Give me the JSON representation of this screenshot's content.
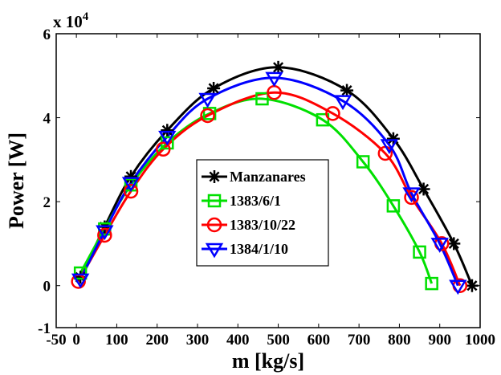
{
  "chart_data": {
    "type": "line",
    "xlabel": "m [kg/s]",
    "ylabel": "Power [W]",
    "y_multiplier": {
      "base": "x 10",
      "exponent": "4"
    },
    "xlim": [
      -50,
      1000
    ],
    "ylim": [
      -10000,
      60000
    ],
    "xticks": [
      -50,
      0,
      100,
      200,
      300,
      400,
      500,
      600,
      700,
      800,
      900,
      1000
    ],
    "xtick_labels": [
      "-50",
      "0",
      "100",
      "200",
      "300",
      "400",
      "500",
      "600",
      "700",
      "800",
      "900",
      "1000"
    ],
    "yticks": [
      -10000,
      0,
      20000,
      40000,
      60000
    ],
    "ytick_labels": [
      "-1",
      "0",
      "2",
      "4",
      "6"
    ],
    "grid": false,
    "legend_position": "center",
    "series": [
      {
        "name": "Manzanares",
        "color": "#000000",
        "marker": "asterisk",
        "points": [
          [
            10,
            2000
          ],
          [
            70,
            14000
          ],
          [
            135,
            26000
          ],
          [
            225,
            37000
          ],
          [
            340,
            47000
          ],
          [
            500,
            52000
          ],
          [
            670,
            46500
          ],
          [
            785,
            35000
          ],
          [
            860,
            23000
          ],
          [
            935,
            10000
          ],
          [
            980,
            0
          ]
        ]
      },
      {
        "name": "1383/6/1",
        "color": "#00e000",
        "marker": "square",
        "points": [
          [
            10,
            3000
          ],
          [
            70,
            13500
          ],
          [
            135,
            24000
          ],
          [
            225,
            34000
          ],
          [
            330,
            41000
          ],
          [
            460,
            44500
          ],
          [
            610,
            39500
          ],
          [
            710,
            29500
          ],
          [
            785,
            19000
          ],
          [
            850,
            8000
          ],
          [
            880,
            500
          ]
        ]
      },
      {
        "name": "1383/10/22",
        "color": "#ff0000",
        "marker": "circle",
        "points": [
          [
            5,
            1000
          ],
          [
            70,
            12000
          ],
          [
            135,
            22500
          ],
          [
            215,
            32500
          ],
          [
            325,
            40500
          ],
          [
            490,
            46000
          ],
          [
            635,
            41000
          ],
          [
            765,
            31500
          ],
          [
            830,
            21000
          ],
          [
            905,
            10000
          ],
          [
            950,
            0
          ]
        ]
      },
      {
        "name": "1384/1/10",
        "color": "#0000ff",
        "marker": "triangle-down",
        "points": [
          [
            10,
            1500
          ],
          [
            70,
            13000
          ],
          [
            135,
            24500
          ],
          [
            225,
            35500
          ],
          [
            325,
            44500
          ],
          [
            490,
            49500
          ],
          [
            660,
            44000
          ],
          [
            775,
            33500
          ],
          [
            830,
            22000
          ],
          [
            900,
            10000
          ],
          [
            945,
            0
          ]
        ]
      }
    ]
  }
}
